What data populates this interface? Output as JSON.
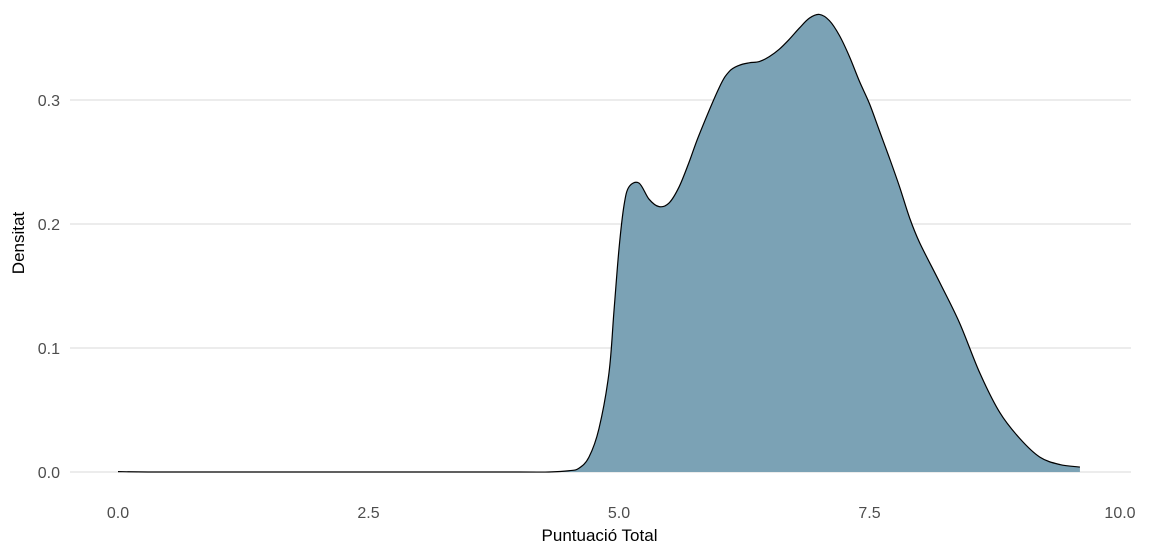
{
  "chart_data": {
    "type": "area",
    "xlabel": "Puntuació Total",
    "ylabel": "Densitat",
    "xlim": [
      0.0,
      9.6
    ],
    "ylim": [
      0.0,
      0.37
    ],
    "x_ticks": [
      "0.0",
      "2.5",
      "5.0",
      "7.5",
      "10.0"
    ],
    "y_ticks": [
      "0.0",
      "0.1",
      "0.2",
      "0.3"
    ],
    "grid": "horizontal-major",
    "legend": "none",
    "fill_color": "#7ba2b5",
    "line_color": "#000000",
    "series": [
      {
        "points": [
          [
            0.0,
            0.0003
          ],
          [
            0.3,
            0.0
          ],
          [
            1.0,
            0.0
          ],
          [
            2.0,
            0.0
          ],
          [
            3.0,
            0.0
          ],
          [
            4.0,
            0.0
          ],
          [
            4.3,
            0.0
          ],
          [
            4.5,
            0.001
          ],
          [
            4.6,
            0.003
          ],
          [
            4.7,
            0.012
          ],
          [
            4.8,
            0.035
          ],
          [
            4.9,
            0.08
          ],
          [
            4.95,
            0.13
          ],
          [
            5.0,
            0.18
          ],
          [
            5.05,
            0.215
          ],
          [
            5.1,
            0.23
          ],
          [
            5.2,
            0.233
          ],
          [
            5.3,
            0.22
          ],
          [
            5.4,
            0.214
          ],
          [
            5.5,
            0.217
          ],
          [
            5.6,
            0.23
          ],
          [
            5.7,
            0.25
          ],
          [
            5.8,
            0.272
          ],
          [
            6.0,
            0.31
          ],
          [
            6.1,
            0.323
          ],
          [
            6.2,
            0.328
          ],
          [
            6.3,
            0.33
          ],
          [
            6.4,
            0.331
          ],
          [
            6.5,
            0.335
          ],
          [
            6.6,
            0.341
          ],
          [
            6.7,
            0.349
          ],
          [
            6.8,
            0.358
          ],
          [
            6.9,
            0.366
          ],
          [
            7.0,
            0.369
          ],
          [
            7.1,
            0.364
          ],
          [
            7.2,
            0.352
          ],
          [
            7.3,
            0.335
          ],
          [
            7.4,
            0.315
          ],
          [
            7.5,
            0.297
          ],
          [
            7.6,
            0.275
          ],
          [
            7.7,
            0.253
          ],
          [
            7.8,
            0.23
          ],
          [
            7.9,
            0.205
          ],
          [
            8.0,
            0.185
          ],
          [
            8.2,
            0.153
          ],
          [
            8.4,
            0.12
          ],
          [
            8.6,
            0.08
          ],
          [
            8.8,
            0.048
          ],
          [
            9.0,
            0.027
          ],
          [
            9.2,
            0.012
          ],
          [
            9.4,
            0.006
          ],
          [
            9.6,
            0.004
          ]
        ]
      }
    ]
  }
}
